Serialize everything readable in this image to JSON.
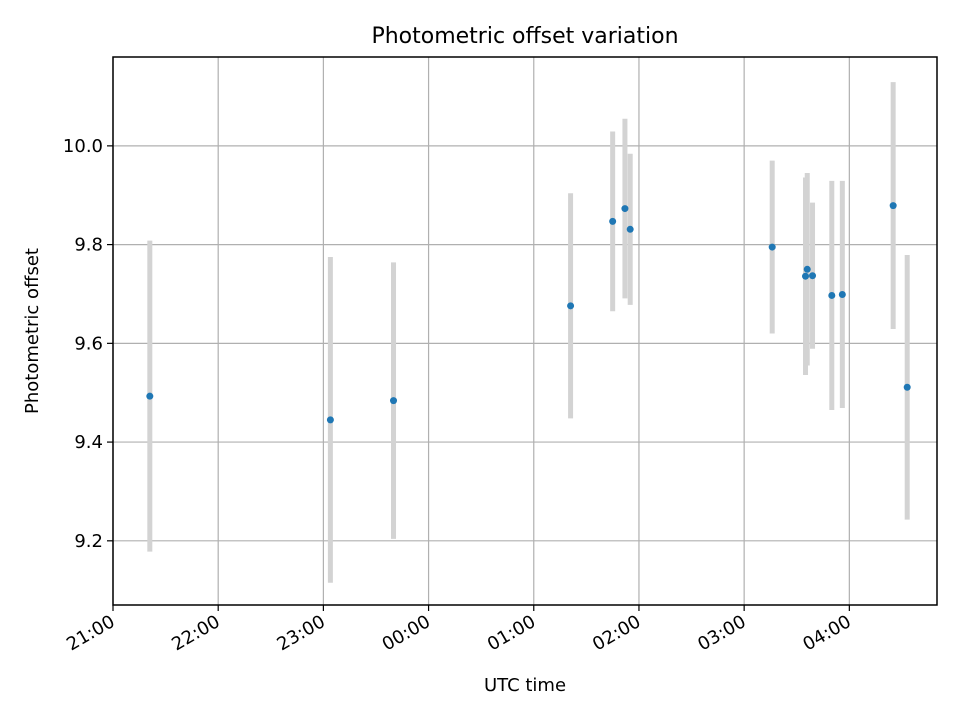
{
  "chart_data": {
    "type": "scatter",
    "title": "Photometric offset variation",
    "xlabel": "UTC time",
    "ylabel": "Photometric offset",
    "x_tick_labels": [
      "21:00",
      "22:00",
      "23:00",
      "00:00",
      "01:00",
      "02:00",
      "03:00",
      "04:00"
    ],
    "y_tick_labels": [
      "9.2",
      "9.4",
      "9.6",
      "9.8",
      "10.0"
    ],
    "y_ticks": [
      9.2,
      9.4,
      9.6,
      9.8,
      10.0
    ],
    "xlim": [
      "21:00",
      "04:50"
    ],
    "ylim": [
      9.07,
      10.18
    ],
    "grid": true,
    "point_color": "#1f77b4",
    "errorbar_color": "#d3d3d3",
    "series": [
      {
        "x": [
          "21:21",
          "23:04",
          "23:40",
          "01:21",
          "01:45",
          "01:52",
          "01:55",
          "03:16",
          "03:35",
          "03:36",
          "03:39",
          "03:50",
          "03:56",
          "04:25",
          "04:33"
        ],
        "y": [
          9.493,
          9.445,
          9.484,
          9.676,
          9.847,
          9.873,
          9.831,
          9.795,
          9.736,
          9.75,
          9.737,
          9.697,
          9.699,
          9.879,
          9.511
        ],
        "error": [
          0.315,
          0.33,
          0.28,
          0.228,
          0.182,
          0.182,
          0.153,
          0.175,
          0.2,
          0.195,
          0.148,
          0.232,
          0.23,
          0.25,
          0.268
        ]
      }
    ]
  }
}
